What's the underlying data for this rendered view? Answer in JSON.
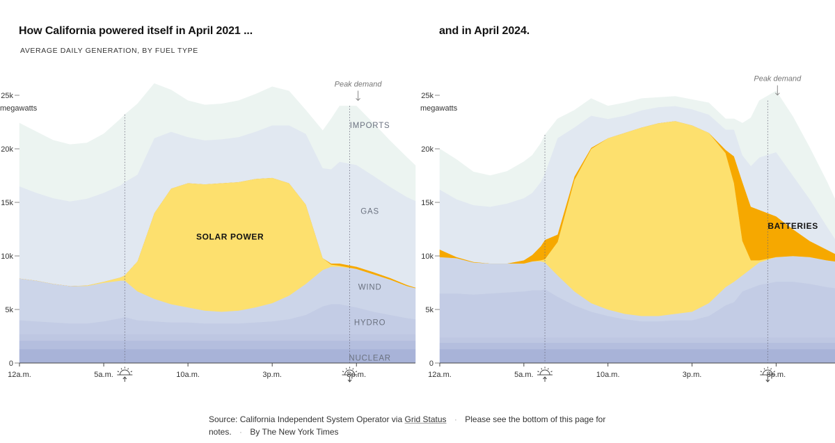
{
  "source_note": {
    "source_label": "Source: California Independent System Operator via",
    "source_link": "Grid Status",
    "notes_text": "Please see the bottom of this page for notes.",
    "byline": "By The New York Times"
  },
  "chart_data": [
    {
      "type": "area",
      "stacked": true,
      "title": "How California powered itself in April 2021 ...",
      "subtitle": "Average daily generation, by fuel type",
      "ylabel": "megawatts",
      "ylim": [
        0,
        25000
      ],
      "y_ticks": [
        {
          "value": 0,
          "label": "0"
        },
        {
          "value": 5000,
          "label": "5k"
        },
        {
          "value": 10000,
          "label": "10k"
        },
        {
          "value": 15000,
          "label": "15k"
        },
        {
          "value": 20000,
          "label": "20k"
        },
        {
          "value": 25000,
          "label": "25k"
        }
      ],
      "y_unit_label": "megawatts",
      "xlim": [
        0,
        23.5
      ],
      "x_ticks": [
        {
          "value": 0,
          "label": "12a.m."
        },
        {
          "value": 5,
          "label": "5a.m."
        },
        {
          "value": 10,
          "label": "10a.m."
        },
        {
          "value": 15,
          "label": "3p.m."
        },
        {
          "value": 20,
          "label": "8p.m."
        }
      ],
      "sunrise_hour": 6.25,
      "sunset_hour": 19.6,
      "peak_demand": {
        "label": "Peak demand",
        "hour": 19.6
      },
      "x": [
        0,
        1,
        2,
        3,
        4,
        5,
        6,
        6.25,
        7,
        8,
        9,
        10,
        11,
        12,
        13,
        14,
        15,
        16,
        17,
        18,
        18.5,
        19,
        20,
        21,
        22,
        23,
        23.5
      ],
      "series": [
        {
          "name": "Nuclear",
          "label": "NUCLEAR",
          "color": "#a8b3d8",
          "values": [
            1300,
            1300,
            1300,
            1300,
            1300,
            1300,
            1300,
            1300,
            1300,
            1300,
            1300,
            1300,
            1300,
            1300,
            1300,
            1300,
            1300,
            1300,
            1300,
            1300,
            1300,
            1300,
            1300,
            1300,
            1300,
            1300,
            1300
          ]
        },
        {
          "name": "Band 2",
          "color": "#b4bede",
          "values": [
            800,
            800,
            800,
            800,
            800,
            800,
            800,
            800,
            800,
            800,
            800,
            800,
            800,
            800,
            800,
            800,
            800,
            800,
            800,
            800,
            800,
            800,
            800,
            800,
            800,
            800,
            800
          ]
        },
        {
          "name": "Band 3",
          "color": "#bec7e2",
          "values": [
            600,
            600,
            600,
            600,
            600,
            600,
            600,
            600,
            600,
            600,
            600,
            600,
            600,
            600,
            600,
            600,
            600,
            600,
            600,
            600,
            600,
            600,
            600,
            600,
            600,
            600,
            600
          ]
        },
        {
          "name": "Hydro",
          "label": "HYDRO",
          "color": "#c3cce5",
          "values": [
            1300,
            1200,
            1100,
            1000,
            1000,
            1200,
            1500,
            1600,
            1300,
            1200,
            1100,
            1100,
            1000,
            1000,
            1000,
            1100,
            1200,
            1400,
            1800,
            2600,
            2800,
            2800,
            2500,
            2100,
            1800,
            1500,
            1400
          ]
        },
        {
          "name": "Wind",
          "label": "WIND",
          "color": "#ccd5e9",
          "values": [
            3900,
            3800,
            3600,
            3500,
            3500,
            3600,
            3500,
            3400,
            2700,
            2100,
            1700,
            1400,
            1200,
            1100,
            1200,
            1400,
            1700,
            2200,
            2900,
            3400,
            3500,
            3500,
            3600,
            3500,
            3300,
            3000,
            2900
          ]
        },
        {
          "name": "Solar",
          "label": "SOLAR POWER",
          "color": "#fde06e",
          "values": [
            0,
            0,
            0,
            0,
            50,
            100,
            300,
            500,
            2800,
            8000,
            10800,
            11600,
            11800,
            12000,
            12000,
            12000,
            11700,
            10500,
            7400,
            1100,
            200,
            100,
            0,
            0,
            0,
            0,
            0
          ]
        },
        {
          "name": "Batteries",
          "color": "#f6a800",
          "values": [
            0,
            0,
            0,
            0,
            0,
            0,
            0,
            0,
            0,
            0,
            0,
            0,
            0,
            0,
            0,
            0,
            0,
            0,
            0,
            0,
            100,
            200,
            200,
            200,
            150,
            100,
            50
          ]
        },
        {
          "name": "Gas",
          "label": "GAS",
          "color": "#e1e8f1",
          "values": [
            8600,
            8200,
            8000,
            7900,
            8100,
            8300,
            8600,
            8700,
            8100,
            7000,
            5300,
            4300,
            4100,
            4100,
            4200,
            4400,
            4900,
            5400,
            6600,
            8400,
            8800,
            9500,
            9500,
            9000,
            8500,
            8200,
            8100
          ]
        },
        {
          "name": "Imports",
          "label": "IMPORTS",
          "color": "#ecf4f1",
          "values": [
            5900,
            5700,
            5400,
            5300,
            5200,
            5500,
            6200,
            6300,
            6600,
            5100,
            3900,
            3400,
            3300,
            3300,
            3400,
            3500,
            3600,
            3200,
            2200,
            3500,
            4700,
            5200,
            5500,
            4900,
            4300,
            3700,
            3300
          ]
        }
      ]
    },
    {
      "type": "area",
      "stacked": true,
      "title": "and in April 2024.",
      "ylabel": "megawatts",
      "ylim": [
        0,
        25000
      ],
      "y_ticks": [
        {
          "value": 0,
          "label": "0"
        },
        {
          "value": 5000,
          "label": "5k"
        },
        {
          "value": 10000,
          "label": "10k"
        },
        {
          "value": 15000,
          "label": "15k"
        },
        {
          "value": 20000,
          "label": "20k"
        },
        {
          "value": 25000,
          "label": "25k"
        }
      ],
      "y_unit_label": "megawatts",
      "xlim": [
        0,
        23.5
      ],
      "x_ticks": [
        {
          "value": 0,
          "label": "12a.m."
        },
        {
          "value": 5,
          "label": "5a.m."
        },
        {
          "value": 10,
          "label": "10a.m."
        },
        {
          "value": 15,
          "label": "3p.m."
        },
        {
          "value": 20,
          "label": "8p.m."
        }
      ],
      "sunrise_hour": 6.25,
      "sunset_hour": 19.5,
      "peak_demand": {
        "label": "Peak demand",
        "hour": 19.5
      },
      "x": [
        0,
        1,
        2,
        3,
        4,
        5,
        5.5,
        6,
        6.25,
        7,
        8,
        9,
        10,
        11,
        12,
        13,
        14,
        15,
        16,
        17,
        17.5,
        18,
        18.5,
        19,
        20,
        21,
        22,
        23,
        23.5
      ],
      "series": [
        {
          "name": "Nuclear",
          "color": "#a8b3d8",
          "values": [
            1300,
            1300,
            1300,
            1300,
            1300,
            1300,
            1300,
            1300,
            1300,
            1300,
            1300,
            1300,
            1300,
            1300,
            1300,
            1300,
            1300,
            1300,
            1300,
            1300,
            1300,
            1300,
            1300,
            1300,
            1300,
            1300,
            1300,
            1300,
            1300
          ]
        },
        {
          "name": "Band 2",
          "color": "#b4bede",
          "values": [
            600,
            600,
            600,
            600,
            600,
            600,
            600,
            600,
            600,
            600,
            600,
            600,
            600,
            600,
            600,
            600,
            600,
            600,
            600,
            600,
            600,
            600,
            600,
            600,
            600,
            600,
            600,
            600,
            600
          ]
        },
        {
          "name": "Band 3",
          "color": "#bec7e2",
          "values": [
            500,
            500,
            500,
            500,
            500,
            500,
            500,
            500,
            500,
            500,
            500,
            500,
            500,
            500,
            500,
            500,
            500,
            500,
            500,
            500,
            500,
            500,
            500,
            500,
            500,
            500,
            500,
            500,
            500
          ]
        },
        {
          "name": "Hydro",
          "color": "#c3cce5",
          "values": [
            4100,
            4100,
            4000,
            4100,
            4200,
            4300,
            4400,
            4400,
            4500,
            3800,
            3000,
            2400,
            2000,
            1700,
            1500,
            1500,
            1600,
            1600,
            2000,
            3000,
            3300,
            4300,
            4600,
            4900,
            5200,
            5200,
            5000,
            4700,
            4600
          ]
        },
        {
          "name": "Wind",
          "color": "#ccd5e9",
          "values": [
            3400,
            3300,
            3000,
            2800,
            2700,
            2600,
            2700,
            2700,
            2500,
            2000,
            1300,
            800,
            600,
            500,
            500,
            500,
            600,
            800,
            1200,
            1700,
            1900,
            1500,
            1800,
            2100,
            2300,
            2400,
            2500,
            2500,
            2500
          ]
        },
        {
          "name": "Solar",
          "color": "#fde06e",
          "values": [
            0,
            0,
            0,
            0,
            0,
            0,
            0,
            100,
            300,
            3100,
            10400,
            14400,
            16000,
            16900,
            17600,
            18000,
            18000,
            17400,
            15900,
            12500,
            9200,
            3200,
            800,
            200,
            0,
            0,
            0,
            0,
            0
          ]
        },
        {
          "name": "Batteries",
          "label": "BATTERIES",
          "color": "#f6a800",
          "values": [
            700,
            100,
            50,
            0,
            0,
            300,
            600,
            1300,
            1800,
            700,
            300,
            100,
            0,
            0,
            0,
            0,
            0,
            0,
            0,
            300,
            2500,
            5500,
            5000,
            4700,
            3800,
            2500,
            1500,
            1000,
            700
          ]
        },
        {
          "name": "Gas",
          "color": "#e1e8f1",
          "values": [
            5600,
            5400,
            5300,
            5300,
            5600,
            5800,
            5800,
            6000,
            6200,
            9000,
            4600,
            3000,
            1800,
            1600,
            1600,
            1500,
            1400,
            1500,
            1700,
            1900,
            2500,
            2500,
            3800,
            4900,
            6000,
            5000,
            3900,
            2200,
            1400
          ]
        },
        {
          "name": "Imports",
          "color": "#ecf4f1",
          "values": [
            3800,
            3700,
            3100,
            2900,
            3000,
            3400,
            3500,
            3600,
            3600,
            1800,
            1600,
            1600,
            1200,
            1200,
            1100,
            900,
            900,
            900,
            1100,
            1000,
            1000,
            3000,
            4500,
            5300,
            5700,
            5500,
            4800,
            4200,
            3700
          ]
        }
      ]
    }
  ]
}
